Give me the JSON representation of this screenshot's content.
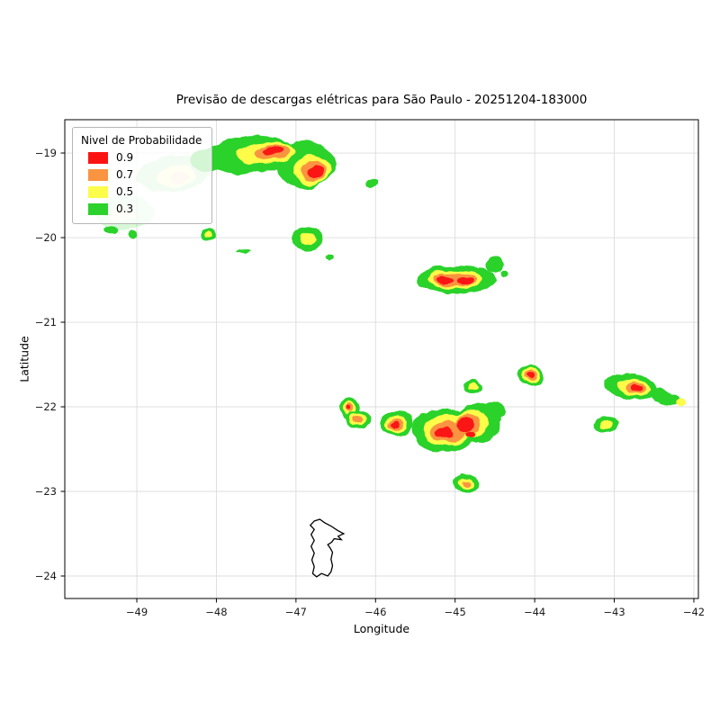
{
  "chart_data": {
    "type": "contour_map",
    "title": "Previsão de descargas elétricas para São Paulo - 20251204-183000",
    "xlabel": "Longitude",
    "ylabel": "Latitude",
    "xlim": [
      -49.905,
      -41.943
    ],
    "ylim": [
      -24.266,
      -18.606
    ],
    "xticks": {
      "values": [
        -49,
        -48,
        -47,
        -46,
        -45,
        -44,
        -43,
        -42
      ],
      "labels": [
        "−49",
        "−48",
        "−47",
        "−46",
        "−45",
        "−44",
        "−43",
        "−42"
      ]
    },
    "yticks": {
      "values": [
        -19,
        -20,
        -21,
        -22,
        -23,
        -24
      ],
      "labels": [
        "−19",
        "−20",
        "−21",
        "−22",
        "−23",
        "−24"
      ]
    },
    "grid": true,
    "grid_color": "#dcdcdc",
    "frame_color": "#000000",
    "levels": {
      "0.3": "#2bd22b",
      "0.5": "#fcfc4a",
      "0.7": "#fa9440",
      "0.9": "#fb1312"
    },
    "legend": {
      "title": "Nivel de Probabilidade",
      "position": "upper left",
      "entries": [
        {
          "label": "0.9",
          "color": "#fb1312"
        },
        {
          "label": "0.7",
          "color": "#fa9440"
        },
        {
          "label": "0.5",
          "color": "#fcfc4a"
        },
        {
          "label": "0.3",
          "color": "#2bd22b"
        }
      ]
    },
    "boundary": {
      "name": "sao-paulo-city-outline",
      "color": "#000000",
      "points": [
        [
          -46.77,
          -23.35
        ],
        [
          -46.7,
          -23.33
        ],
        [
          -46.64,
          -23.37
        ],
        [
          -46.56,
          -23.41
        ],
        [
          -46.48,
          -23.46
        ],
        [
          -46.4,
          -23.5
        ],
        [
          -46.47,
          -23.53
        ],
        [
          -46.43,
          -23.57
        ],
        [
          -46.52,
          -23.56
        ],
        [
          -46.55,
          -23.6
        ],
        [
          -46.6,
          -23.63
        ],
        [
          -46.57,
          -23.67
        ],
        [
          -46.54,
          -23.72
        ],
        [
          -46.56,
          -23.8
        ],
        [
          -46.54,
          -23.88
        ],
        [
          -46.56,
          -23.95
        ],
        [
          -46.6,
          -24.0
        ],
        [
          -46.68,
          -23.97
        ],
        [
          -46.74,
          -24.01
        ],
        [
          -46.79,
          -23.97
        ],
        [
          -46.77,
          -23.89
        ],
        [
          -46.8,
          -23.81
        ],
        [
          -46.77,
          -23.73
        ],
        [
          -46.81,
          -23.65
        ],
        [
          -46.77,
          -23.58
        ],
        [
          -46.81,
          -23.51
        ],
        [
          -46.77,
          -23.45
        ],
        [
          -46.82,
          -23.4
        ],
        [
          -46.77,
          -23.35
        ]
      ]
    },
    "clusters": [
      {
        "opacity": 1,
        "parts": [
          {
            "level": "0.3",
            "lon": -47.55,
            "lat": -19.02,
            "rx": 0.55,
            "ry": 0.22,
            "rot": -4
          },
          {
            "level": "0.3",
            "lon": -46.88,
            "lat": -19.13,
            "rx": 0.36,
            "ry": 0.28,
            "rot": 0
          },
          {
            "level": "0.3",
            "lon": -48.05,
            "lat": -19.06,
            "rx": 0.26,
            "ry": 0.14,
            "rot": -12
          },
          {
            "level": "0.5",
            "lon": -47.38,
            "lat": -19.0,
            "rx": 0.36,
            "ry": 0.13,
            "rot": -4
          },
          {
            "level": "0.5",
            "lon": -46.8,
            "lat": -19.2,
            "rx": 0.22,
            "ry": 0.17,
            "rot": 0
          },
          {
            "level": "0.7",
            "lon": -47.3,
            "lat": -18.99,
            "rx": 0.21,
            "ry": 0.085,
            "rot": -4
          },
          {
            "level": "0.7",
            "lon": -46.78,
            "lat": -19.21,
            "rx": 0.14,
            "ry": 0.115,
            "rot": 0
          },
          {
            "level": "0.9",
            "lon": -47.28,
            "lat": -18.98,
            "rx": 0.115,
            "ry": 0.05,
            "rot": -4
          },
          {
            "level": "0.9",
            "lon": -46.76,
            "lat": -19.21,
            "rx": 0.085,
            "ry": 0.07,
            "rot": 0
          }
        ]
      },
      {
        "opacity": 0.3,
        "parts": [
          {
            "level": "0.3",
            "lon": -48.55,
            "lat": -19.25,
            "rx": 0.45,
            "ry": 0.22,
            "rot": -8
          },
          {
            "level": "0.5",
            "lon": -48.5,
            "lat": -19.28,
            "rx": 0.25,
            "ry": 0.12,
            "rot": -8
          },
          {
            "level": "0.7",
            "lon": -48.45,
            "lat": -19.3,
            "rx": 0.12,
            "ry": 0.06,
            "rot": -8
          }
        ]
      },
      {
        "opacity": 0.18,
        "parts": [
          {
            "level": "0.3",
            "lon": -49.15,
            "lat": -19.7,
            "rx": 0.38,
            "ry": 0.2,
            "rot": 0
          },
          {
            "level": "0.5",
            "lon": -49.18,
            "lat": -19.72,
            "rx": 0.16,
            "ry": 0.09,
            "rot": 0
          }
        ]
      },
      {
        "opacity": 1,
        "parts": [
          {
            "level": "0.3",
            "lon": -46.05,
            "lat": -19.36,
            "rx": 0.08,
            "ry": 0.055,
            "rot": 0
          }
        ]
      },
      {
        "opacity": 1,
        "parts": [
          {
            "level": "0.3",
            "lon": -49.32,
            "lat": -19.9,
            "rx": 0.09,
            "ry": 0.05,
            "rot": 0
          }
        ]
      },
      {
        "opacity": 1,
        "parts": [
          {
            "level": "0.3",
            "lon": -49.06,
            "lat": -19.96,
            "rx": 0.06,
            "ry": 0.045,
            "rot": 0
          }
        ]
      },
      {
        "opacity": 1,
        "parts": [
          {
            "level": "0.3",
            "lon": -48.1,
            "lat": -19.96,
            "rx": 0.11,
            "ry": 0.075,
            "rot": 0
          },
          {
            "level": "0.5",
            "lon": -48.1,
            "lat": -19.96,
            "rx": 0.05,
            "ry": 0.035,
            "rot": 0
          }
        ]
      },
      {
        "opacity": 1,
        "parts": [
          {
            "level": "0.3",
            "lon": -46.85,
            "lat": -20.0,
            "rx": 0.2,
            "ry": 0.13,
            "rot": 0
          },
          {
            "level": "0.3",
            "lon": -46.58,
            "lat": -20.23,
            "rx": 0.05,
            "ry": 0.04,
            "rot": 0
          },
          {
            "level": "0.5",
            "lon": -46.85,
            "lat": -20.0,
            "rx": 0.1,
            "ry": 0.07,
            "rot": 0
          }
        ]
      },
      {
        "opacity": 1,
        "parts": [
          {
            "level": "0.3",
            "lon": -47.66,
            "lat": -20.15,
            "rx": 0.07,
            "ry": 0.025,
            "rot": 0
          }
        ]
      },
      {
        "opacity": 1,
        "parts": [
          {
            "level": "0.3",
            "lon": -44.98,
            "lat": -20.5,
            "rx": 0.5,
            "ry": 0.17,
            "rot": 0
          },
          {
            "level": "0.3",
            "lon": -44.5,
            "lat": -20.32,
            "rx": 0.13,
            "ry": 0.1,
            "rot": 0
          },
          {
            "level": "0.3",
            "lon": -44.35,
            "lat": -20.42,
            "rx": 0.05,
            "ry": 0.04,
            "rot": 0
          },
          {
            "level": "0.5",
            "lon": -45.0,
            "lat": -20.5,
            "rx": 0.34,
            "ry": 0.12,
            "rot": 0
          },
          {
            "level": "0.7",
            "lon": -45.01,
            "lat": -20.5,
            "rx": 0.27,
            "ry": 0.09,
            "rot": 0
          },
          {
            "level": "0.9",
            "lon": -45.12,
            "lat": -20.5,
            "rx": 0.115,
            "ry": 0.055,
            "rot": 0
          },
          {
            "level": "0.9",
            "lon": -44.88,
            "lat": -20.51,
            "rx": 0.095,
            "ry": 0.05,
            "rot": 0
          }
        ]
      },
      {
        "opacity": 1,
        "parts": [
          {
            "level": "0.3",
            "lon": -44.78,
            "lat": -21.76,
            "rx": 0.1,
            "ry": 0.075,
            "rot": 0
          },
          {
            "level": "0.5",
            "lon": -44.78,
            "lat": -21.76,
            "rx": 0.05,
            "ry": 0.04,
            "rot": 0
          }
        ]
      },
      {
        "opacity": 1,
        "parts": [
          {
            "level": "0.3",
            "lon": -44.04,
            "lat": -21.64,
            "rx": 0.16,
            "ry": 0.12,
            "rot": 0
          },
          {
            "level": "0.5",
            "lon": -44.04,
            "lat": -21.64,
            "rx": 0.11,
            "ry": 0.085,
            "rot": 0
          },
          {
            "level": "0.7",
            "lon": -44.04,
            "lat": -21.64,
            "rx": 0.075,
            "ry": 0.055,
            "rot": 0
          },
          {
            "level": "0.9",
            "lon": -44.04,
            "lat": -21.64,
            "rx": 0.045,
            "ry": 0.033,
            "rot": 0
          }
        ]
      },
      {
        "opacity": 1,
        "parts": [
          {
            "level": "0.3",
            "lon": -42.8,
            "lat": -21.76,
            "rx": 0.33,
            "ry": 0.15,
            "rot": 8
          },
          {
            "level": "0.3",
            "lon": -42.38,
            "lat": -21.88,
            "rx": 0.22,
            "ry": 0.09,
            "rot": 18
          },
          {
            "level": "0.5",
            "lon": -42.76,
            "lat": -21.77,
            "rx": 0.2,
            "ry": 0.1,
            "rot": 8
          },
          {
            "level": "0.5",
            "lon": -42.15,
            "lat": -21.95,
            "rx": 0.07,
            "ry": 0.05,
            "rot": 20
          },
          {
            "level": "0.7",
            "lon": -42.74,
            "lat": -21.77,
            "rx": 0.13,
            "ry": 0.07,
            "rot": 8
          },
          {
            "level": "0.9",
            "lon": -42.73,
            "lat": -21.77,
            "rx": 0.08,
            "ry": 0.045,
            "rot": 8
          }
        ]
      },
      {
        "opacity": 1,
        "parts": [
          {
            "level": "0.3",
            "lon": -43.1,
            "lat": -22.21,
            "rx": 0.16,
            "ry": 0.09,
            "rot": 0
          },
          {
            "level": "0.5",
            "lon": -43.1,
            "lat": -22.21,
            "rx": 0.085,
            "ry": 0.05,
            "rot": 0
          }
        ]
      },
      {
        "opacity": 1,
        "parts": [
          {
            "level": "0.3",
            "lon": -46.33,
            "lat": -22.02,
            "rx": 0.14,
            "ry": 0.12,
            "rot": 0
          },
          {
            "level": "0.5",
            "lon": -46.33,
            "lat": -22.02,
            "rx": 0.09,
            "ry": 0.075,
            "rot": 0
          },
          {
            "level": "0.7",
            "lon": -46.33,
            "lat": -22.01,
            "rx": 0.05,
            "ry": 0.045,
            "rot": 0
          },
          {
            "level": "0.9",
            "lon": -46.34,
            "lat": -22.01,
            "rx": 0.028,
            "ry": 0.025,
            "rot": 0
          }
        ]
      },
      {
        "opacity": 1,
        "parts": [
          {
            "level": "0.3",
            "lon": -46.21,
            "lat": -22.15,
            "rx": 0.15,
            "ry": 0.12,
            "rot": 0
          },
          {
            "level": "0.5",
            "lon": -46.22,
            "lat": -22.14,
            "rx": 0.1,
            "ry": 0.085,
            "rot": 0
          },
          {
            "level": "0.7",
            "lon": -46.22,
            "lat": -22.14,
            "rx": 0.06,
            "ry": 0.05,
            "rot": 0
          }
        ]
      },
      {
        "opacity": 1,
        "parts": [
          {
            "level": "0.3",
            "lon": -45.74,
            "lat": -22.2,
            "rx": 0.2,
            "ry": 0.14,
            "rot": 0
          },
          {
            "level": "0.5",
            "lon": -45.74,
            "lat": -22.2,
            "rx": 0.135,
            "ry": 0.095,
            "rot": 0
          },
          {
            "level": "0.7",
            "lon": -45.74,
            "lat": -22.2,
            "rx": 0.095,
            "ry": 0.065,
            "rot": 0
          },
          {
            "level": "0.9",
            "lon": -45.74,
            "lat": -22.2,
            "rx": 0.055,
            "ry": 0.04,
            "rot": 0
          }
        ]
      },
      {
        "opacity": 1,
        "parts": [
          {
            "level": "0.3",
            "lon": -45.15,
            "lat": -22.28,
            "rx": 0.4,
            "ry": 0.26,
            "rot": 5
          },
          {
            "level": "0.3",
            "lon": -44.72,
            "lat": -22.2,
            "rx": 0.3,
            "ry": 0.23,
            "rot": 0
          },
          {
            "level": "0.3",
            "lon": -44.5,
            "lat": -22.05,
            "rx": 0.13,
            "ry": 0.1,
            "rot": 0
          },
          {
            "level": "0.5",
            "lon": -45.1,
            "lat": -22.28,
            "rx": 0.29,
            "ry": 0.18,
            "rot": 5
          },
          {
            "level": "0.5",
            "lon": -44.8,
            "lat": -22.2,
            "rx": 0.2,
            "ry": 0.16,
            "rot": 0
          },
          {
            "level": "0.7",
            "lon": -45.08,
            "lat": -22.3,
            "rx": 0.21,
            "ry": 0.12,
            "rot": 5
          },
          {
            "level": "0.7",
            "lon": -44.83,
            "lat": -22.2,
            "rx": 0.15,
            "ry": 0.12,
            "rot": 0
          },
          {
            "level": "0.9",
            "lon": -45.13,
            "lat": -22.31,
            "rx": 0.1,
            "ry": 0.065,
            "rot": 0
          },
          {
            "level": "0.9",
            "lon": -44.86,
            "lat": -22.2,
            "rx": 0.1,
            "ry": 0.085,
            "rot": 0
          },
          {
            "level": "0.9",
            "lon": -44.8,
            "lat": -22.32,
            "rx": 0.05,
            "ry": 0.04,
            "rot": 0
          }
        ]
      },
      {
        "opacity": 1,
        "parts": [
          {
            "level": "0.3",
            "lon": -44.86,
            "lat": -22.9,
            "rx": 0.16,
            "ry": 0.105,
            "rot": 0
          },
          {
            "level": "0.5",
            "lon": -44.86,
            "lat": -22.9,
            "rx": 0.1,
            "ry": 0.065,
            "rot": 0
          },
          {
            "level": "0.7",
            "lon": -44.86,
            "lat": -22.9,
            "rx": 0.055,
            "ry": 0.04,
            "rot": 0
          }
        ]
      }
    ]
  }
}
